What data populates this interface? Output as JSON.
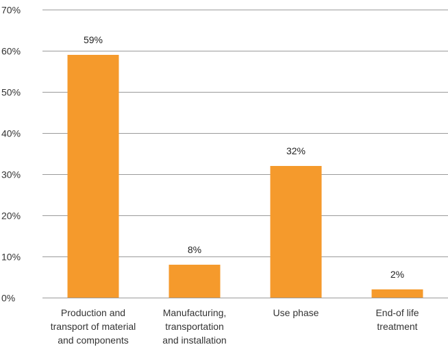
{
  "chart_data": {
    "type": "bar",
    "title": "",
    "xlabel": "",
    "ylabel": "",
    "categories": [
      [
        "Production and",
        "transport of material",
        "and components"
      ],
      [
        "Manufacturing,",
        "transportation",
        "and installation"
      ],
      [
        "Use phase"
      ],
      [
        "End-of life",
        "treatment"
      ]
    ],
    "values": [
      59,
      8,
      32,
      2
    ],
    "data_labels": [
      "59%",
      "8%",
      "32%",
      "2%"
    ],
    "ylim": [
      0,
      70
    ],
    "yticks": [
      0,
      10,
      20,
      30,
      40,
      50,
      60,
      70
    ],
    "ytick_labels": [
      "0%",
      "10%",
      "20%",
      "30%",
      "40%",
      "50%",
      "60%",
      "70%"
    ],
    "grid": true,
    "legend": "none",
    "bar_color": "#F59A2C",
    "grid_color": "#9A9A9A"
  }
}
